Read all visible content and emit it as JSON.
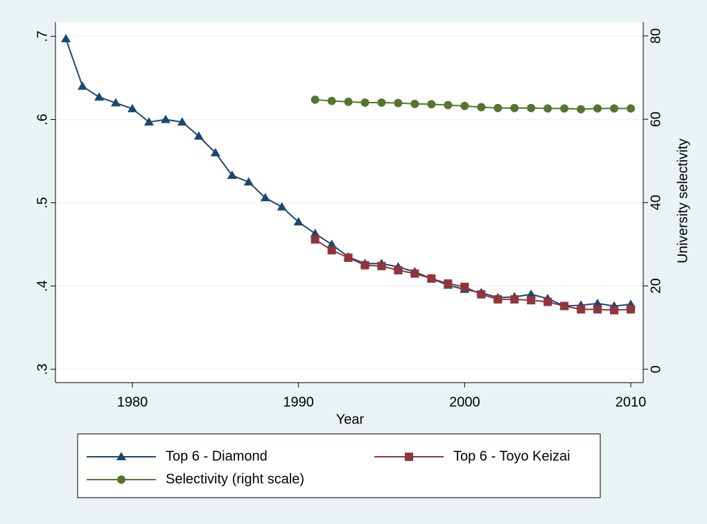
{
  "chart_data": {
    "type": "line",
    "x": [
      1976,
      1977,
      1978,
      1979,
      1980,
      1981,
      1982,
      1983,
      1984,
      1985,
      1986,
      1987,
      1988,
      1989,
      1990,
      1991,
      1992,
      1993,
      1994,
      1995,
      1996,
      1997,
      1998,
      1999,
      2000,
      2001,
      2002,
      2003,
      2004,
      2005,
      2006,
      2007,
      2008,
      2009,
      2010
    ],
    "xlabel": "Year",
    "y2label": "University selectivity",
    "xlim": [
      1975.37,
      2010.75
    ],
    "xticks": [
      1980,
      1990,
      2000,
      2010
    ],
    "ylim": [
      0.284,
      0.717
    ],
    "yticks": [
      {
        "value": 0.3,
        "label": ".3"
      },
      {
        "value": 0.4,
        "label": ".4"
      },
      {
        "value": 0.5,
        "label": ".5"
      },
      {
        "value": 0.6,
        "label": ".6"
      },
      {
        "value": 0.7,
        "label": ".7"
      }
    ],
    "y2lim": [
      -3.2,
      83.3
    ],
    "y2ticks": [
      0,
      20,
      40,
      60,
      80
    ],
    "grid": true,
    "legend": "bottom",
    "series": [
      {
        "name": "Top 6 - Diamond",
        "color": "#1a476f",
        "marker": "triangle",
        "values": [
          0.697,
          0.64,
          0.627,
          0.62,
          0.613,
          0.597,
          0.6,
          0.597,
          0.58,
          0.56,
          0.533,
          0.525,
          0.506,
          0.495,
          0.477,
          0.463,
          0.45,
          0.435,
          0.427,
          0.427,
          0.423,
          0.417,
          0.409,
          0.401,
          0.396,
          0.392,
          0.386,
          0.387,
          0.39,
          0.385,
          0.376,
          0.377,
          0.379,
          0.376,
          0.378
        ]
      },
      {
        "name": "Top 6 - Toyo Keizai",
        "color": "#90353b",
        "marker": "square",
        "values": [
          null,
          null,
          null,
          null,
          null,
          null,
          null,
          null,
          null,
          null,
          null,
          null,
          null,
          null,
          null,
          0.456,
          0.443,
          0.434,
          0.425,
          0.424,
          0.419,
          0.415,
          0.409,
          0.403,
          0.399,
          0.39,
          0.384,
          0.384,
          0.383,
          0.381,
          0.376,
          0.372,
          0.372,
          0.371,
          0.372
        ]
      },
      {
        "name": "Selectivity (right scale)",
        "color": "#55752f",
        "marker": "circle",
        "axis": "y2",
        "values": [
          null,
          null,
          null,
          null,
          null,
          null,
          null,
          null,
          null,
          null,
          null,
          null,
          null,
          null,
          null,
          64.7,
          64.4,
          64.2,
          64.0,
          64.0,
          63.9,
          63.7,
          63.6,
          63.4,
          63.2,
          62.9,
          62.7,
          62.7,
          62.7,
          62.6,
          62.6,
          62.4,
          62.6,
          62.6,
          62.6
        ]
      }
    ]
  }
}
